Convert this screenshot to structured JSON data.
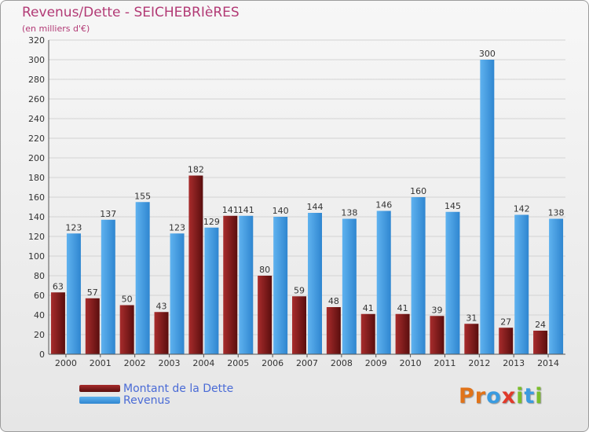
{
  "title": "Revenus/Dette - SEICHEBRIèRES",
  "subtitle": "(en milliers d'€)",
  "logo": {
    "letters": [
      "P",
      "r",
      "o",
      "x",
      "i",
      "t",
      "i"
    ],
    "colors": [
      "#e0731a",
      "#e0731a",
      "#3a9be0",
      "#e03a2a",
      "#7bbd2b",
      "#3a9be0",
      "#7bbd2b"
    ]
  },
  "legend": {
    "dette_label": "Montant de la Dette",
    "revenus_label": "Revenus"
  },
  "colors": {
    "dette_light": "#a82c2c",
    "dette_dark": "#5a0e0e",
    "revenus_light": "#5fb2ef",
    "revenus_dark": "#2f86d0",
    "grid": "#d3d3d3",
    "axis": "#555555",
    "text": "#333333"
  },
  "chart_data": {
    "type": "bar",
    "categories": [
      "2000",
      "2001",
      "2002",
      "2003",
      "2004",
      "2005",
      "2006",
      "2007",
      "2008",
      "2009",
      "2010",
      "2011",
      "2012",
      "2013",
      "2014"
    ],
    "series": [
      {
        "name": "Montant de la Dette",
        "values": [
          63,
          57,
          50,
          43,
          182,
          141,
          80,
          59,
          48,
          41,
          41,
          39,
          31,
          27,
          24
        ]
      },
      {
        "name": "Revenus",
        "values": [
          123,
          137,
          155,
          123,
          129,
          141,
          140,
          144,
          138,
          146,
          160,
          145,
          300,
          142,
          138
        ]
      }
    ],
    "ylim": [
      0,
      320
    ],
    "yticks": [
      0,
      20,
      40,
      60,
      80,
      100,
      120,
      140,
      160,
      180,
      200,
      220,
      240,
      260,
      280,
      300,
      320
    ],
    "grid": true,
    "legend_position": "bottom-left"
  }
}
